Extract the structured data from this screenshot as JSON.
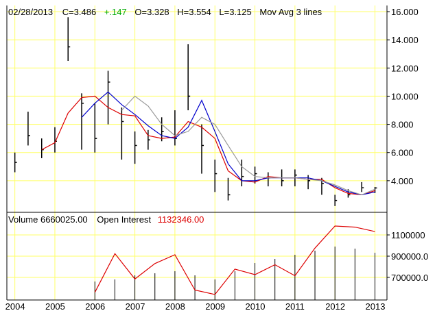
{
  "header": {
    "date": "02/28/2013",
    "close": "C=3.486",
    "change": "+.147",
    "open": "O=3.328",
    "high": "H=3.554",
    "low": "L=3.125",
    "indicator": "Mov Avg 3 lines"
  },
  "volume_header": {
    "volume": "Volume  6660025.00",
    "oi_label": "Open Interest",
    "oi_value": "1132346.00"
  },
  "colors": {
    "background": "#ffffff",
    "grid": "#ffff66",
    "price": "#000000",
    "ma_short": "#dd0000",
    "ma_mid": "#0000cc",
    "ma_long": "#999999",
    "volume_bar": "#000000",
    "open_interest": "#dd0000",
    "change_positive": "#00aa00",
    "oi_value": "#dd0000"
  },
  "chart_data": [
    {
      "type": "ohlc",
      "title": "",
      "x": [
        "2004",
        "2004.33",
        "2004.67",
        "2005",
        "2005.33",
        "2005.67",
        "2006",
        "2006.33",
        "2006.67",
        "2007",
        "2007.33",
        "2007.67",
        "2008",
        "2008.33",
        "2008.67",
        "2009",
        "2009.33",
        "2009.67",
        "2010",
        "2010.33",
        "2010.67",
        "2011",
        "2011.33",
        "2011.67",
        "2012",
        "2012.33",
        "2012.67",
        "2013"
      ],
      "close": [
        5.3,
        7.2,
        6.2,
        6.8,
        13.5,
        9.5,
        7.0,
        11.0,
        8.2,
        6.5,
        6.9,
        7.5,
        7.0,
        10.0,
        6.5,
        4.5,
        3.0,
        4.3,
        4.5,
        4.2,
        4.0,
        4.4,
        4.0,
        3.8,
        2.6,
        3.0,
        3.5,
        3.486
      ],
      "high": [
        6.0,
        8.9,
        7.0,
        7.8,
        15.6,
        10.2,
        9.5,
        11.8,
        9.2,
        7.5,
        7.6,
        8.5,
        9.0,
        13.7,
        8.0,
        5.5,
        4.2,
        5.5,
        5.0,
        4.6,
        4.8,
        4.8,
        4.4,
        4.2,
        3.0,
        3.4,
        3.9,
        3.554
      ],
      "low": [
        4.6,
        6.5,
        5.6,
        6.0,
        12.5,
        6.2,
        6.0,
        8.0,
        5.5,
        5.2,
        6.2,
        6.8,
        6.5,
        9.0,
        4.5,
        3.2,
        2.6,
        3.6,
        3.8,
        3.6,
        3.6,
        3.6,
        3.4,
        3.0,
        2.2,
        2.8,
        3.2,
        3.125
      ],
      "series": [
        {
          "name": "",
          "values": [
            null,
            null,
            6.2,
            6.7,
            8.8,
            9.9,
            10.0,
            9.2,
            8.7,
            8.6,
            7.2,
            7.0,
            7.1,
            8.2,
            7.8,
            7.0,
            4.7,
            4.0,
            3.9,
            4.3,
            4.2,
            4.2,
            4.1,
            4.1,
            3.5,
            3.1,
            3.0,
            3.3
          ]
        },
        {
          "name": "",
          "values": [
            null,
            null,
            null,
            null,
            null,
            8.5,
            9.5,
            10.3,
            9.4,
            8.7,
            7.9,
            7.2,
            7.0,
            7.8,
            9.7,
            7.5,
            5.2,
            4.0,
            4.0,
            4.2,
            4.2,
            4.2,
            4.2,
            4.0,
            3.6,
            3.2,
            3.0,
            3.2
          ]
        },
        {
          "name": "",
          "values": [
            null,
            null,
            null,
            null,
            null,
            null,
            null,
            null,
            9.0,
            10.0,
            9.3,
            8.0,
            7.2,
            7.5,
            8.5,
            8.0,
            6.5,
            5.0,
            4.3,
            4.2,
            4.2,
            4.2,
            4.1,
            4.0,
            3.7,
            3.3,
            3.0,
            3.4
          ]
        }
      ],
      "yticks": [
        "4.000",
        "6.000",
        "8.000",
        "10.000",
        "12.000",
        "14.000",
        "16.000"
      ],
      "ylim": [
        2,
        16.5
      ],
      "grid": true
    },
    {
      "type": "bar",
      "title": "",
      "x": [
        "2006",
        "2006.5",
        "2007",
        "2007.5",
        "2008",
        "2008.5",
        "2009",
        "2009.5",
        "2010",
        "2010.5",
        "2011",
        "2011.5",
        "2012",
        "2012.5",
        "2013"
      ],
      "volume": [
        0.45,
        0.5,
        0.6,
        0.65,
        0.7,
        0.6,
        0.5,
        0.7,
        0.9,
        1.0,
        1.1,
        1.2,
        1.3,
        1.25,
        1.15
      ],
      "open_interest": [
        5.8,
        9.3,
        7.0,
        8.4,
        9.2,
        6.0,
        5.6,
        7.9,
        7.4,
        8.3,
        7.3,
        9.8,
        11.8,
        11.7,
        11.3
      ],
      "yticks": [
        "700000.0",
        "900000.0",
        "1100000"
      ],
      "grid": true
    }
  ],
  "xaxis_labels": [
    "2004",
    "2005",
    "2006",
    "2007",
    "2008",
    "2009",
    "2010",
    "2011",
    "2012",
    "2013"
  ]
}
